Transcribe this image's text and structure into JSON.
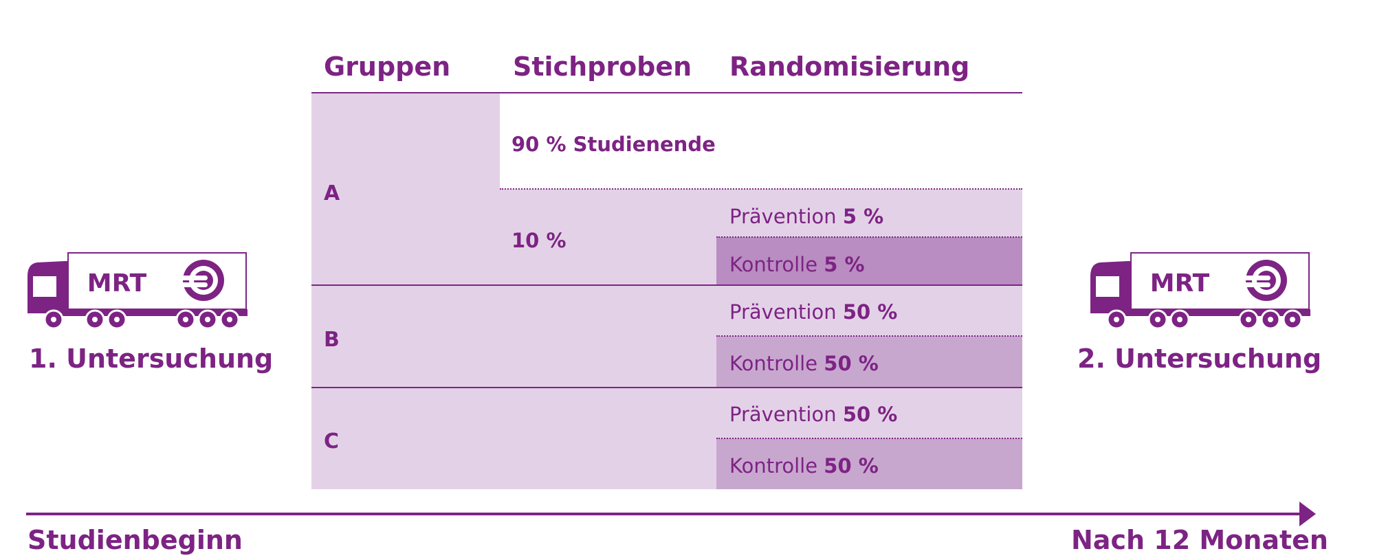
{
  "colors": {
    "primary": "#7d2384",
    "light": "#e3d2e7",
    "medium": "#c8a7cf",
    "dark": "#b98dc1"
  },
  "headers": {
    "groups": "Gruppen",
    "samples": "Stichproben",
    "randomization": "Randomisierung"
  },
  "groups": {
    "a": {
      "label": "A",
      "sample_end": "90 % Studienende",
      "sample_rest": "10 %",
      "prevention": {
        "label": "Prävention",
        "pct": "5 %"
      },
      "control": {
        "label": "Kontrolle",
        "pct": "5 %"
      }
    },
    "b": {
      "label": "B",
      "prevention": {
        "label": "Prävention",
        "pct": "50 %"
      },
      "control": {
        "label": "Kontrolle",
        "pct": "50 %"
      }
    },
    "c": {
      "label": "C",
      "prevention": {
        "label": "Prävention",
        "pct": "50 %"
      },
      "control": {
        "label": "Kontrolle",
        "pct": "50 %"
      }
    }
  },
  "trucks": {
    "left": {
      "sign": "MRT",
      "caption": "1. Untersuchung",
      "icon": "mri-truck-icon"
    },
    "right": {
      "sign": "MRT",
      "caption": "2. Untersuchung",
      "icon": "mri-truck-icon"
    }
  },
  "timeline": {
    "start": "Studienbeginn",
    "end": "Nach 12 Monaten",
    "icon": "arrow-right-icon"
  }
}
